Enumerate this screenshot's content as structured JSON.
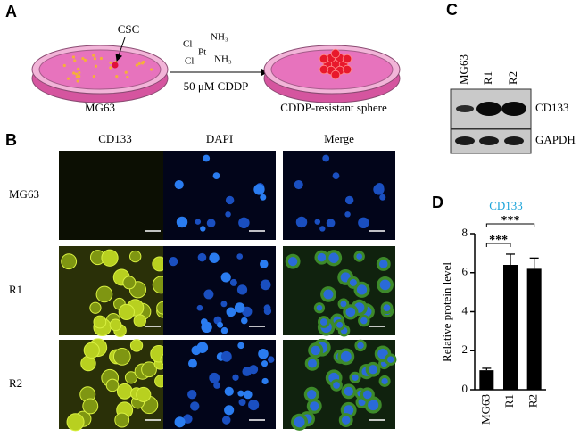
{
  "panel_a": {
    "label": "A",
    "csc": "CSC",
    "cell_line": "MG63",
    "treatment": "50 μM CDDP",
    "result": "CDDP-resistant sphere",
    "formula": {
      "cl_top": "Cl",
      "nh3_top": "NH₃",
      "pt": "Pt",
      "cl_bottom": "Cl",
      "nh3_bottom": "NH₃"
    }
  },
  "panel_b": {
    "label": "B",
    "columns": [
      "CD133",
      "DAPI",
      "Merge"
    ],
    "rows": [
      "MG63",
      "R1",
      "R2"
    ]
  },
  "panel_c": {
    "label": "C",
    "lanes": [
      "MG63",
      "R1",
      "R2"
    ],
    "blots": [
      "CD133",
      "GAPDH"
    ]
  },
  "chart_data": {
    "type": "bar",
    "panel_label": "D",
    "title": "CD133",
    "title_color": "#1aa3d9",
    "ylabel": "Relative protein level",
    "categories": [
      "MG63",
      "R1",
      "R2"
    ],
    "values": [
      1.0,
      6.4,
      6.2
    ],
    "errors": [
      0.1,
      0.55,
      0.55
    ],
    "color": "#000000",
    "ylim": [
      0,
      8
    ],
    "yticks": [
      0,
      2,
      4,
      6,
      8
    ],
    "significance": [
      {
        "pair": [
          0,
          1
        ],
        "label": "***"
      },
      {
        "pair": [
          0,
          2
        ],
        "label": "***"
      }
    ]
  }
}
